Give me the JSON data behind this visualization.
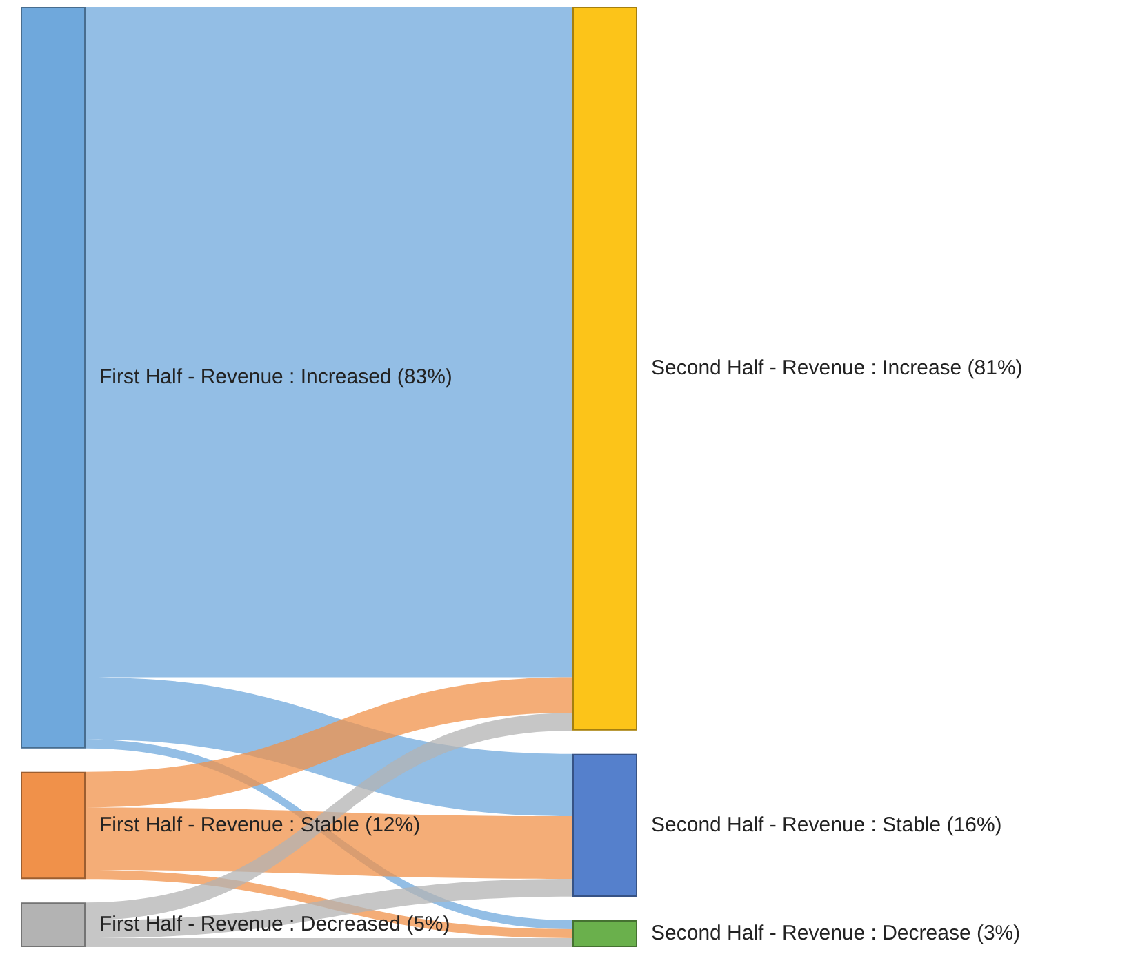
{
  "chart_data": {
    "type": "other",
    "y_categories": [
      "First Half - Revenue : Increased",
      "First Half - Revenue : Stable",
      "First Half - Revenue : Decreased"
    ],
    "categories": [
      "Second Half - Revenue : Increase",
      "Second Half - Revenue : Stable",
      "Second Half - Revenue : Decrease"
    ],
    "series": [
      {
        "values": [
          83,
          12,
          5
        ],
        "value_labels": [
          "(83%)",
          "(12%)",
          "(5%)"
        ],
        "colors": [
          "#6fa8dc",
          "#f0914a",
          "#b3b3b3"
        ]
      },
      {
        "values": [
          81,
          16,
          3
        ],
        "value_labels": [
          "(81%)",
          "(16%)",
          "(3%)"
        ],
        "colors": [
          "#fcc419",
          "#5580cc",
          "#6ab04c"
        ]
      }
    ]
  }
}
